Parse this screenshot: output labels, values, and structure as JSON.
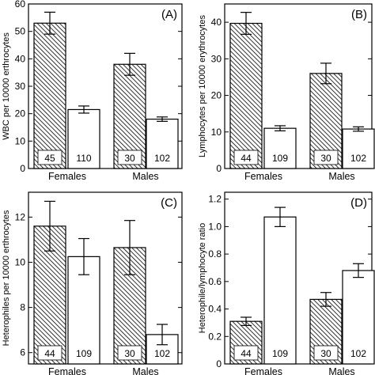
{
  "chart_data": [
    {
      "type": "bar",
      "panel_label": "(A)",
      "ylabel": "WBC per 10000 erthrocytes",
      "ylim": [
        0,
        60
      ],
      "yticks": [
        0,
        10,
        20,
        30,
        40,
        50,
        60
      ],
      "categories": [
        "Females",
        "Males"
      ],
      "series": [
        {
          "pattern": "hatched",
          "values": [
            53,
            38
          ],
          "errors": [
            4,
            4
          ],
          "n": [
            "45",
            "30"
          ]
        },
        {
          "pattern": "open",
          "values": [
            21.5,
            18
          ],
          "errors": [
            1.3,
            0.8
          ],
          "n": [
            "110",
            "102"
          ]
        }
      ]
    },
    {
      "type": "bar",
      "panel_label": "(B)",
      "ylabel": "Lymphocytes per 10000 erythrocytes",
      "ylim": [
        0,
        45
      ],
      "yticks": [
        0,
        10,
        20,
        30,
        40
      ],
      "categories": [
        "Females",
        "Males"
      ],
      "series": [
        {
          "pattern": "hatched",
          "values": [
            39.7,
            26
          ],
          "errors": [
            3,
            2.8
          ],
          "n": [
            "44",
            "30"
          ]
        },
        {
          "pattern": "open",
          "values": [
            11,
            10.8
          ],
          "errors": [
            0.7,
            0.6
          ],
          "n": [
            "109",
            "102"
          ]
        }
      ]
    },
    {
      "type": "bar",
      "panel_label": "(C)",
      "ylabel": "Heterophiles per 10000 erthrocytes",
      "ylim": [
        5.5,
        13.1
      ],
      "yticks": [
        6,
        8,
        10,
        12
      ],
      "categories": [
        "Females",
        "Males"
      ],
      "series": [
        {
          "pattern": "hatched",
          "values": [
            11.6,
            10.65
          ],
          "errors": [
            1.1,
            1.2
          ],
          "n": [
            "44",
            "30"
          ]
        },
        {
          "pattern": "open",
          "values": [
            10.25,
            6.8
          ],
          "errors": [
            0.8,
            0.45
          ],
          "n": [
            "109",
            "102"
          ]
        }
      ]
    },
    {
      "type": "bar",
      "panel_label": "(D)",
      "ylabel": "Heterophile/lymphocyte ratio",
      "ylim": [
        0,
        1.25
      ],
      "yticks": [
        0,
        0.2,
        0.4,
        0.6,
        0.8,
        1.0,
        1.2
      ],
      "ytick_labels": [
        "0",
        "0.2",
        "0.4",
        "0.6",
        "0.8",
        "1.0",
        "1.2"
      ],
      "categories": [
        "Females",
        "Males"
      ],
      "series": [
        {
          "pattern": "hatched",
          "values": [
            0.31,
            0.47
          ],
          "errors": [
            0.03,
            0.05
          ],
          "n": [
            "44",
            "30"
          ]
        },
        {
          "pattern": "open",
          "values": [
            1.07,
            0.68
          ],
          "errors": [
            0.07,
            0.05
          ],
          "n": [
            "109",
            "102"
          ]
        }
      ]
    }
  ]
}
